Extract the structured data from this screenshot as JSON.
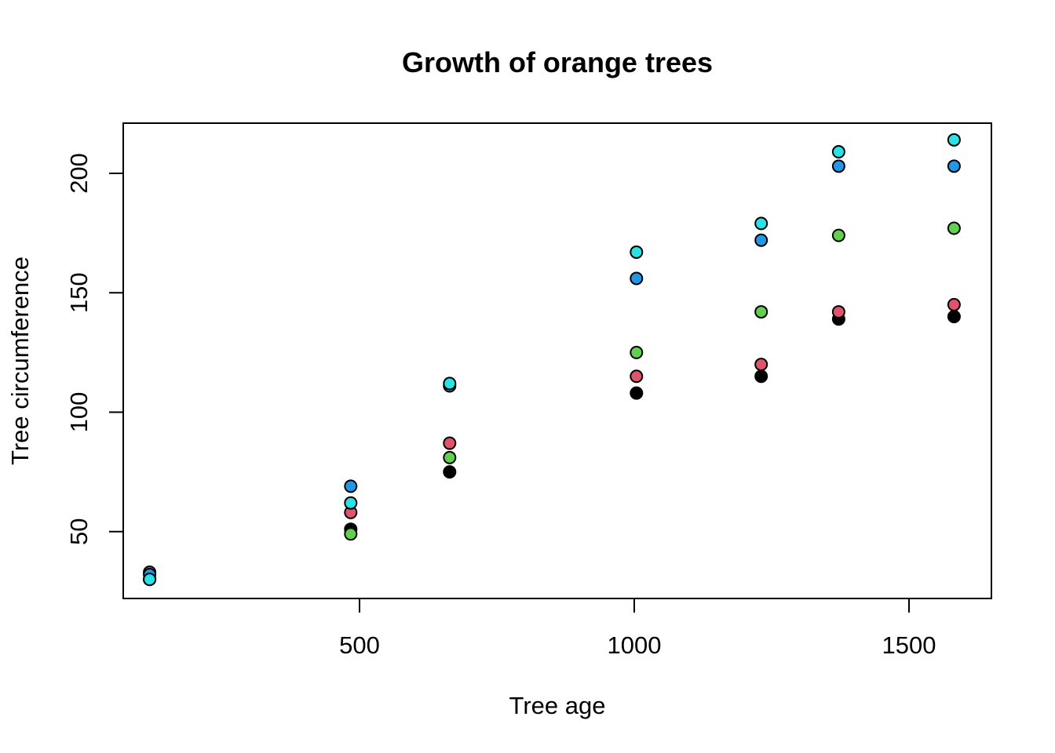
{
  "chart_data": {
    "type": "scatter",
    "title": "Growth of orange trees",
    "xlabel": "Tree age",
    "ylabel": "Tree circumference",
    "xlim": [
      70,
      1650
    ],
    "ylim": [
      22,
      221
    ],
    "x_ticks": [
      500,
      1000,
      1500
    ],
    "y_ticks": [
      50,
      100,
      150,
      200
    ],
    "grid": false,
    "legend": "none",
    "x": [
      118,
      484,
      664,
      1004,
      1231,
      1372,
      1582
    ],
    "series": [
      {
        "color": "#000000",
        "values": [
          30,
          51,
          75,
          108,
          115,
          139,
          140
        ]
      },
      {
        "color": "#DF536B",
        "values": [
          33,
          58,
          87,
          115,
          120,
          142,
          145
        ]
      },
      {
        "color": "#61D04F",
        "values": [
          30,
          49,
          81,
          125,
          142,
          174,
          177
        ]
      },
      {
        "color": "#2297E6",
        "values": [
          32,
          69,
          111,
          156,
          172,
          203,
          203
        ]
      },
      {
        "color": "#28E2E5",
        "values": [
          30,
          62,
          112,
          167,
          179,
          209,
          214
        ]
      }
    ]
  }
}
